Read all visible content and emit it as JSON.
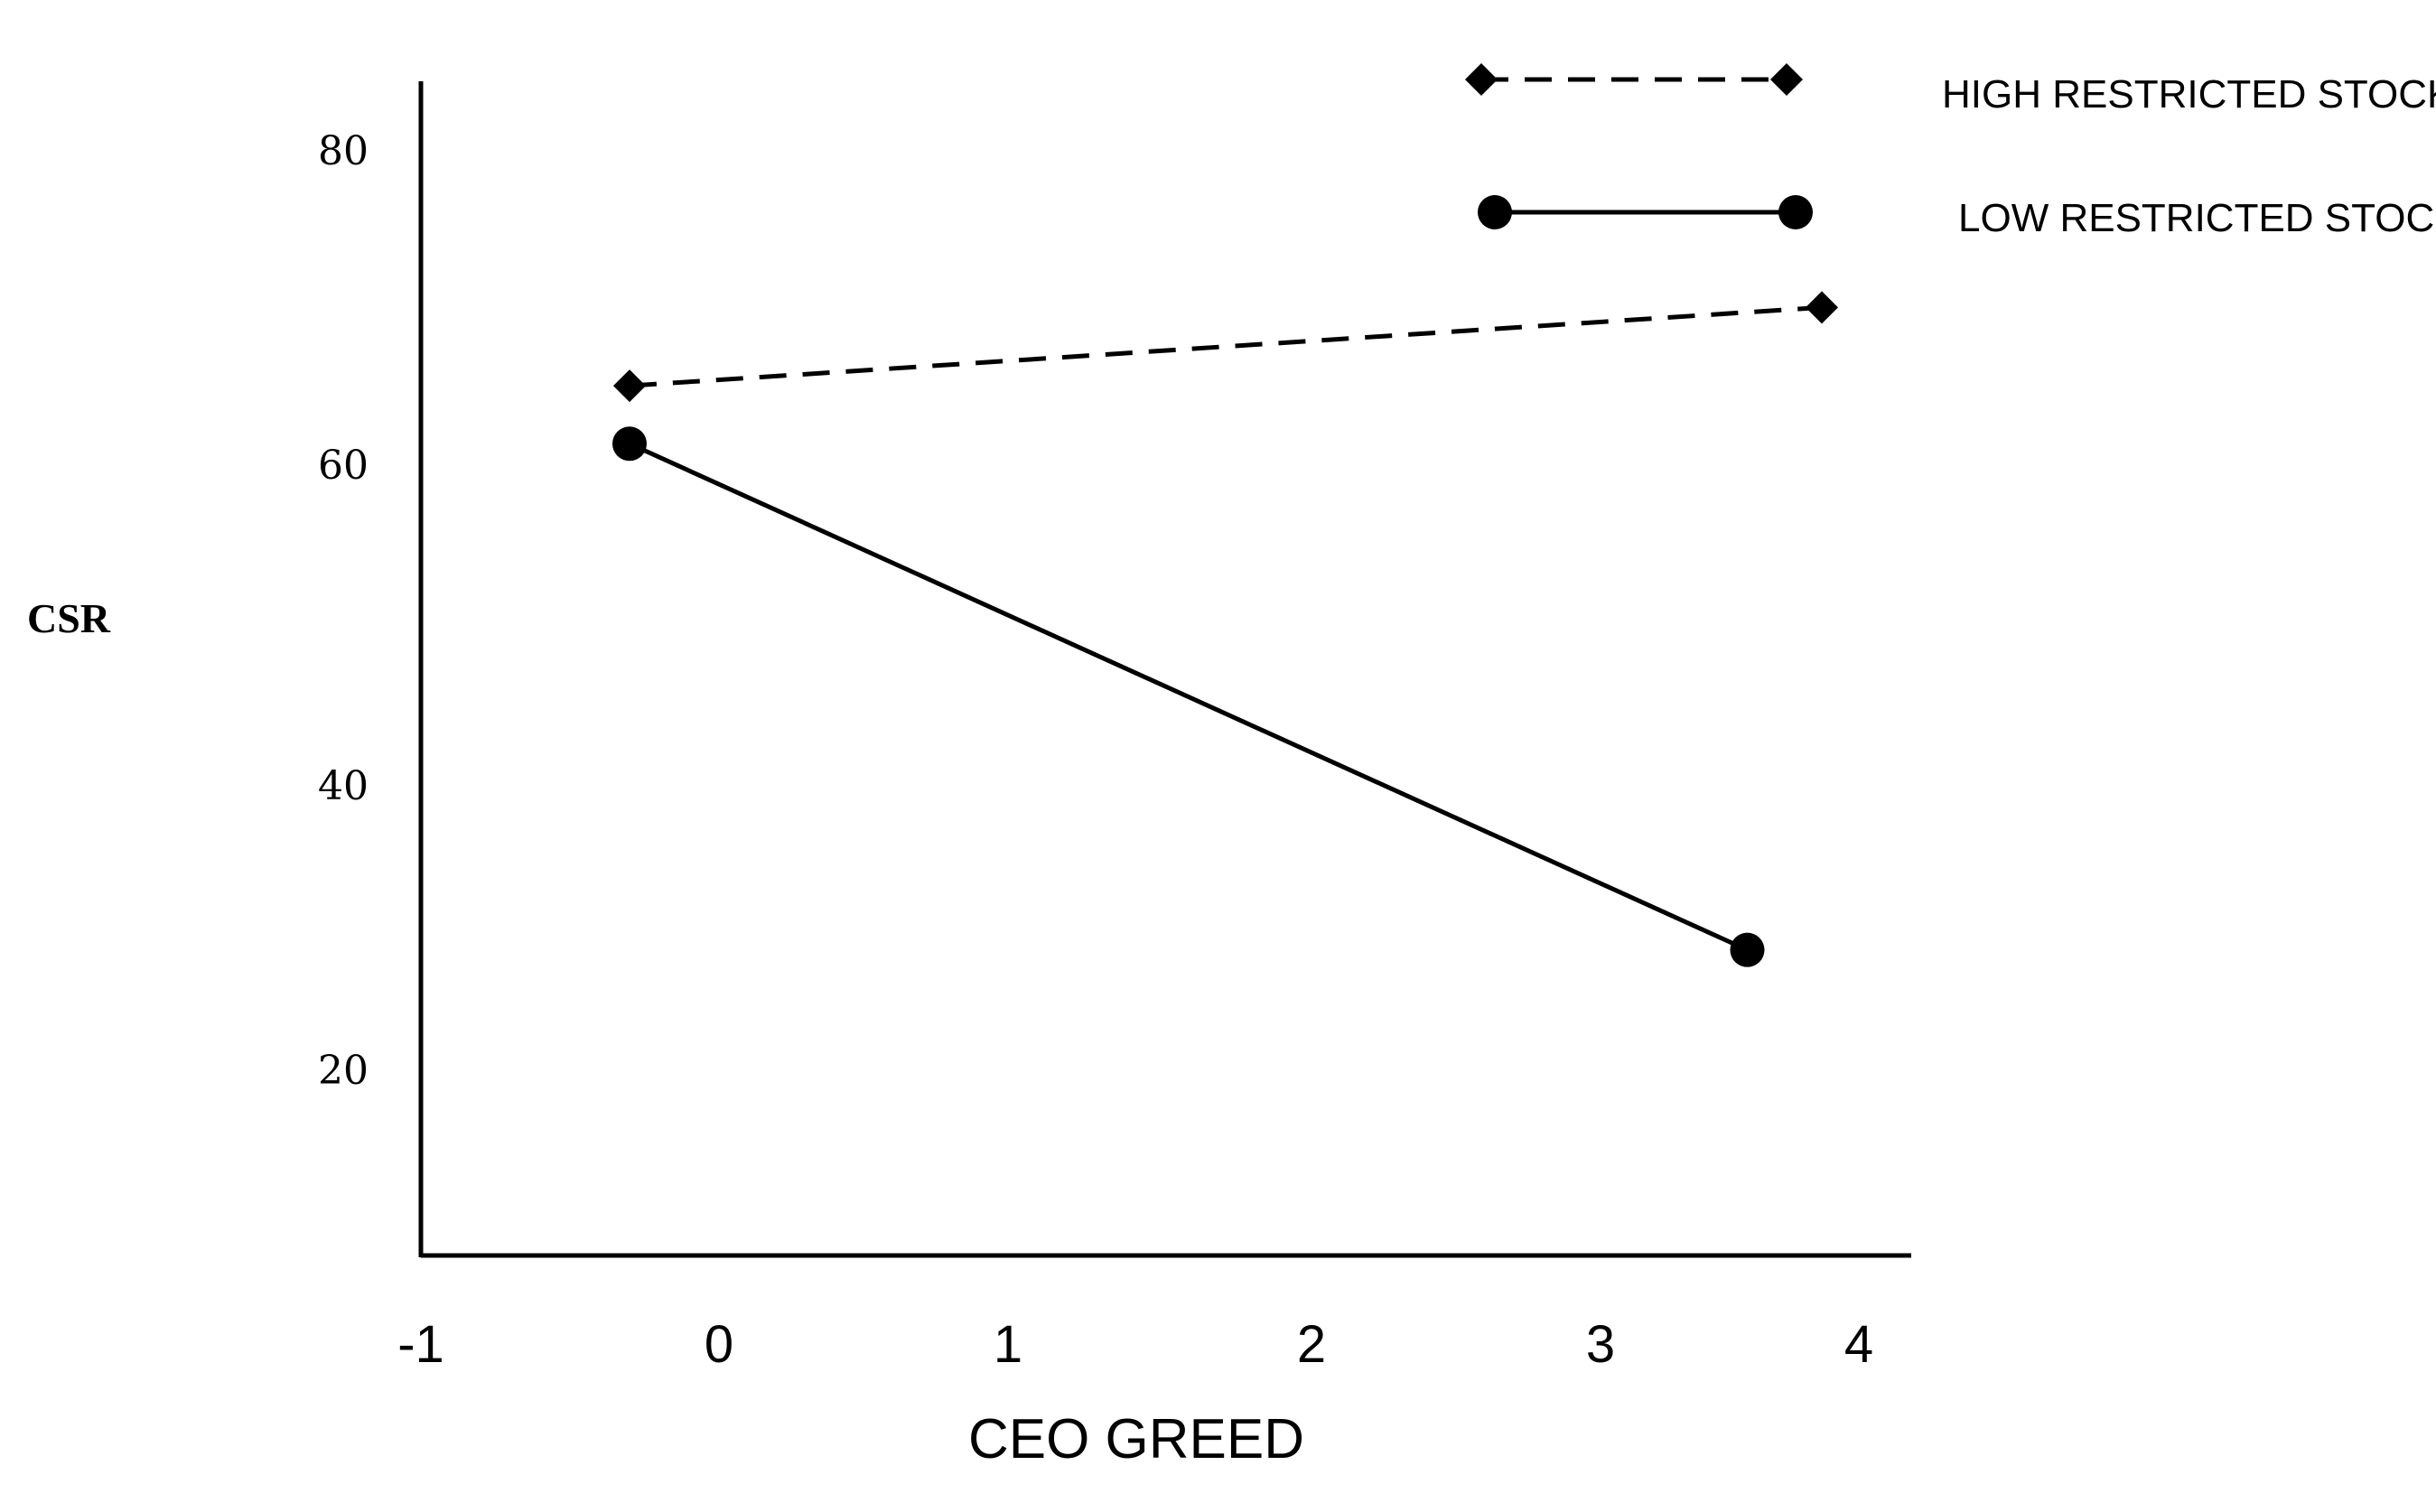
{
  "chart_data": {
    "type": "line",
    "xlabel": "CEO GREED",
    "ylabel": "CSR",
    "x_ticks": [
      "-1",
      "0",
      "1",
      "2",
      "3",
      "4"
    ],
    "y_ticks": [
      "20",
      "40",
      "60",
      "80"
    ],
    "xlim": [
      -1,
      4
    ],
    "ylim": [
      8,
      83
    ],
    "legend_position": "top-right",
    "series": [
      {
        "name": "HIGH RESTRICTED STOCK",
        "marker": "diamond",
        "line": "dashed",
        "color": "#000000",
        "x": [
          -0.3,
          3.7
        ],
        "y": [
          63.5,
          68.5
        ]
      },
      {
        "name": "LOW RESTRICTED STOCK",
        "marker": "circle",
        "line": "solid",
        "color": "#000000",
        "x": [
          -0.3,
          3.45
        ],
        "y": [
          59.8,
          27.5
        ]
      }
    ]
  }
}
